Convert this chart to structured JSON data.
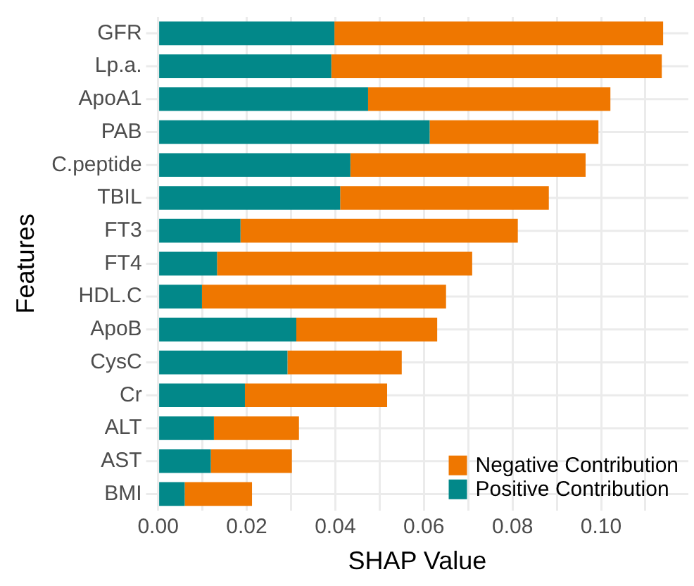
{
  "chart_data": {
    "type": "bar",
    "orientation": "horizontal",
    "stacked": true,
    "xlabel": "SHAP Value",
    "ylabel": "Features",
    "categories": [
      "GFR",
      "Lp.a.",
      "ApoA1",
      "PAB",
      "C.peptide",
      "TBIL",
      "FT3",
      "FT4",
      "HDL.C",
      "ApoB",
      "CysC",
      "Cr",
      "ALT",
      "AST",
      "BMI"
    ],
    "series": [
      {
        "name": "Positive Contribution",
        "color": "#028889",
        "values": [
          0.0398,
          0.0391,
          0.0474,
          0.0613,
          0.0434,
          0.0411,
          0.0186,
          0.0133,
          0.0099,
          0.0312,
          0.0292,
          0.0196,
          0.0126,
          0.0119,
          0.006
        ]
      },
      {
        "name": "Negative Contribution",
        "color": "#ef7700",
        "values": [
          0.0742,
          0.0746,
          0.0547,
          0.0381,
          0.0531,
          0.0471,
          0.0626,
          0.0576,
          0.0551,
          0.0318,
          0.0258,
          0.0321,
          0.0192,
          0.0183,
          0.0152
        ]
      }
    ],
    "xlim": [
      -0.0027,
      0.1197
    ],
    "xticks": [
      {
        "value": 0,
        "label": "0.00"
      },
      {
        "value": 0.01,
        "label": null
      },
      {
        "value": 0.02,
        "label": "0.02"
      },
      {
        "value": 0.03,
        "label": null
      },
      {
        "value": 0.04,
        "label": "0.04"
      },
      {
        "value": 0.05,
        "label": null
      },
      {
        "value": 0.06,
        "label": "0.06"
      },
      {
        "value": 0.07,
        "label": null
      },
      {
        "value": 0.08,
        "label": "0.08"
      },
      {
        "value": 0.09,
        "label": null
      },
      {
        "value": 0.1,
        "label": "0.10"
      },
      {
        "value": 0.11,
        "label": null
      }
    ],
    "grid": true,
    "legend": "bottom right"
  }
}
